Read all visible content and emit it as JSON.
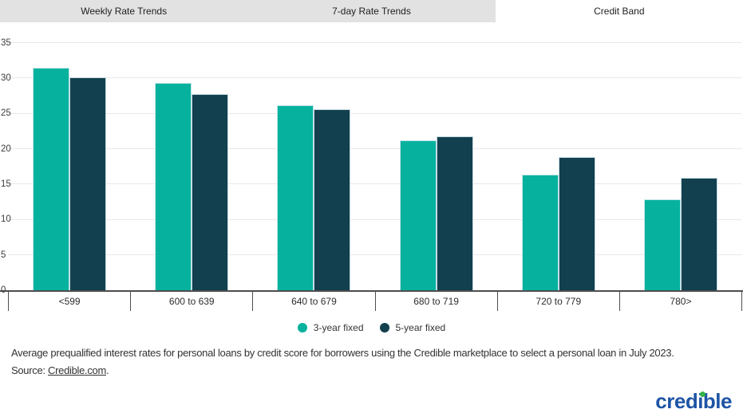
{
  "tabs": [
    {
      "label": "Weekly Rate Trends",
      "active": false
    },
    {
      "label": "7-day Rate Trends",
      "active": false
    },
    {
      "label": "Credit Band",
      "active": true
    }
  ],
  "chart_data": {
    "type": "bar",
    "categories": [
      "<599",
      "600 to 639",
      "640 to 679",
      "680 to 719",
      "720 to 779",
      "780>"
    ],
    "series": [
      {
        "name": "3-year fixed",
        "color": "#06b29e",
        "values": [
          31.4,
          29.3,
          26.1,
          21.2,
          16.4,
          12.8
        ]
      },
      {
        "name": "5-year fixed",
        "color": "#12404f",
        "values": [
          30.1,
          27.7,
          25.6,
          21.8,
          18.8,
          15.9
        ]
      }
    ],
    "xlabel": "",
    "ylabel": "",
    "ylim": [
      0,
      35
    ],
    "ytick_step": 5,
    "grid": true,
    "legend_position": "bottom",
    "unit": "%"
  },
  "caption": {
    "line1": "Average prequalified interest rates for personal loans by credit score for borrowers using the Credible marketplace to select a personal loan in July 2023.",
    "source_prefix": "Source: ",
    "source_link": "Credible.com",
    "source_suffix": "."
  },
  "logo": {
    "text": "credible",
    "color": "#1e55a5",
    "dot_color": "#35b34a"
  }
}
